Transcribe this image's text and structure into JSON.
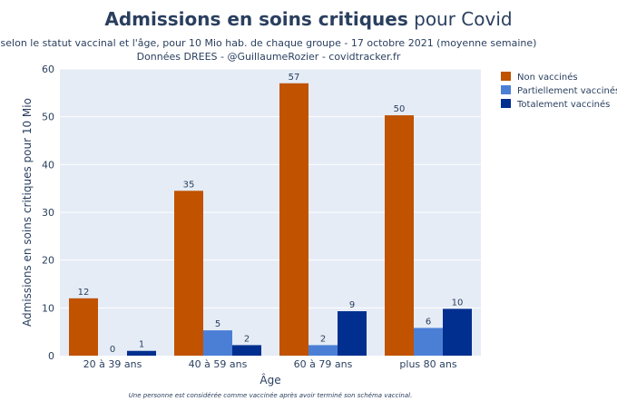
{
  "title_bold": "Admissions en soins critiques",
  "title_rest": " pour Covid",
  "subtitle_line1": "selon le statut vaccinal et l'âge, pour 10 Mio hab. de chaque groupe - 17 octobre 2021 (moyenne semaine)",
  "subtitle_line2": "Données DREES - @GuillaumeRozier - covidtracker.fr",
  "footnote": "Une personne est considérée comme vaccinée après avoir terminé son schéma vaccinal.",
  "colors": {
    "title": "#2a3f5f",
    "plot_bg": "#e5ecf6",
    "grid": "#ffffff",
    "text": "#2a3f5f"
  },
  "chart_data": {
    "type": "bar",
    "xlabel": "Âge",
    "ylabel": "Admissions en soins critiques pour 10 Mio",
    "ylim": [
      0,
      60
    ],
    "yticks": [
      0,
      10,
      20,
      30,
      40,
      50,
      60
    ],
    "grid": true,
    "legend_position": "right",
    "categories": [
      "20 à 39 ans",
      "40 à 59 ans",
      "60 à 79 ans",
      "plus 80 ans"
    ],
    "series": [
      {
        "name": "Non vaccinés",
        "color": "#c05200",
        "values": [
          12,
          35,
          57,
          50
        ],
        "value_labels": [
          "12",
          "35",
          "57",
          "50"
        ],
        "heights": [
          12,
          34.5,
          57,
          50.3
        ]
      },
      {
        "name": "Partiellement vaccinés",
        "color": "#4b7fd6",
        "values": [
          0,
          5,
          2,
          6
        ],
        "value_labels": [
          "0",
          "5",
          "2",
          "6"
        ],
        "heights": [
          0,
          5.3,
          2.2,
          5.8
        ]
      },
      {
        "name": "Totalement vaccinés",
        "color": "#002f8f",
        "values": [
          1,
          2,
          9,
          10
        ],
        "value_labels": [
          "1",
          "2",
          "9",
          "10"
        ],
        "heights": [
          1.0,
          2.2,
          9.3,
          9.8
        ]
      }
    ]
  }
}
